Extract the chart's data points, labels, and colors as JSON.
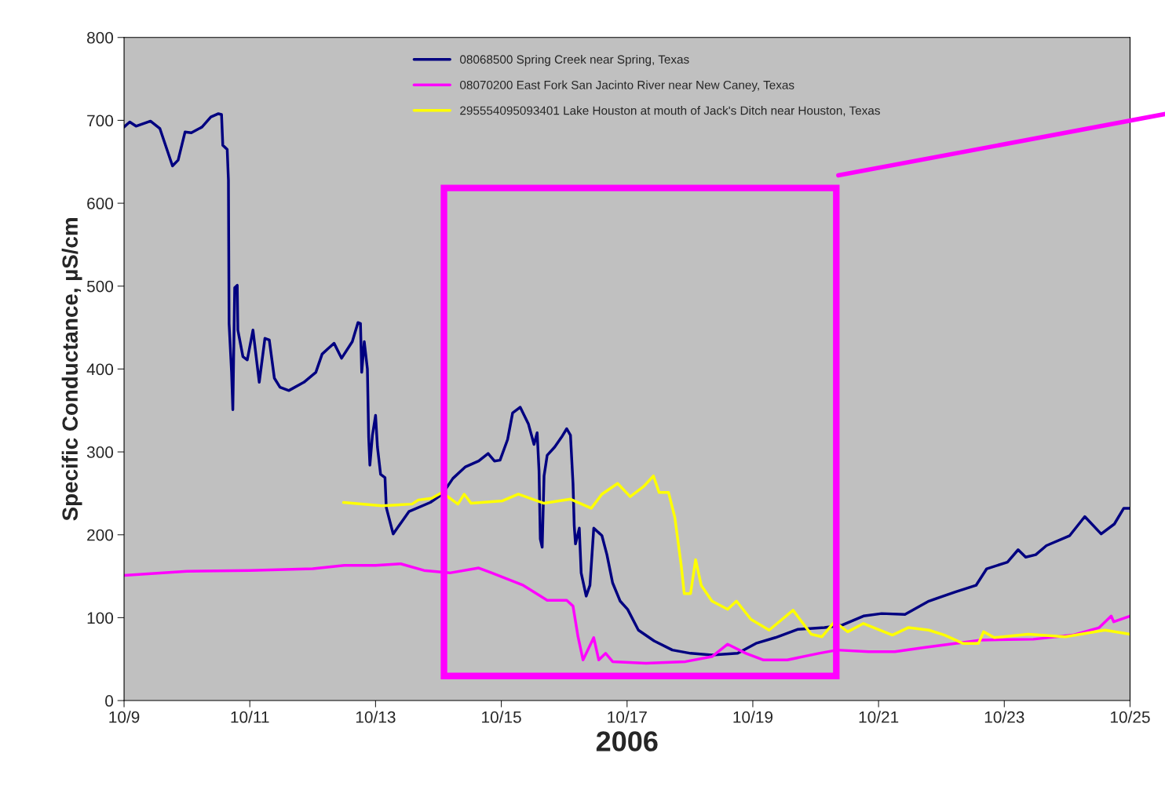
{
  "chart_data": {
    "type": "line",
    "xlabel": "2006",
    "ylabel": "Specific Conductance, µS/cm",
    "xlim": [
      "2006-10-09",
      "2006-10-25"
    ],
    "xticks": [
      {
        "value": "2006-10-09",
        "label": "10/9"
      },
      {
        "value": "2006-10-11",
        "label": "10/11"
      },
      {
        "value": "2006-10-13",
        "label": "10/13"
      },
      {
        "value": "2006-10-15",
        "label": "10/15"
      },
      {
        "value": "2006-10-17",
        "label": "10/17"
      },
      {
        "value": "2006-10-19",
        "label": "10/19"
      },
      {
        "value": "2006-10-21",
        "label": "10/21"
      },
      {
        "value": "2006-10-23",
        "label": "10/23"
      },
      {
        "value": "2006-10-25",
        "label": "10/25"
      }
    ],
    "ylim": [
      0,
      800
    ],
    "yticks": [
      0,
      100,
      200,
      300,
      400,
      500,
      600,
      700,
      800
    ],
    "grid": false,
    "legend": "top",
    "marker": "none",
    "line_style": "solid",
    "series": [
      {
        "name": "08068500 Spring Creek near Spring, Texas",
        "color": "#000080",
        "x": [
          "2006-10-09T00:00",
          "2006-10-09T02:10",
          "2006-10-09T04:34",
          "2006-10-09T10:05",
          "2006-10-09T13:41",
          "2006-10-09T18:29",
          "2006-10-09T20:38",
          "2006-10-09T23:17",
          "2006-10-10T01:41",
          "2006-10-10T05:46",
          "2006-10-10T09:07",
          "2006-10-10T12:00",
          "2006-10-10T13:12",
          "2006-10-10T13:41",
          "2006-10-10T15:22",
          "2006-10-10T15:50",
          "2006-10-10T16:05",
          "2006-10-10T17:02",
          "2006-10-10T17:31",
          "2006-10-10T18:14",
          "2006-10-10T19:12",
          "2006-10-10T19:26",
          "2006-10-10T21:22",
          "2006-10-10T23:02",
          "2006-10-11T01:12",
          "2006-10-11T03:36",
          "2006-10-11T05:46",
          "2006-10-11T07:26",
          "2006-10-11T09:22",
          "2006-10-11T11:31",
          "2006-10-11T14:53",
          "2006-10-11T20:38",
          "2006-10-12T01:12",
          "2006-10-12T03:36",
          "2006-10-12T06:00",
          "2006-10-12T08:10",
          "2006-10-12T11:02",
          "2006-10-12T15:07",
          "2006-10-12T17:17",
          "2006-10-12T18:14",
          "2006-10-12T18:43",
          "2006-10-12T19:41",
          "2006-10-12T20:53",
          "2006-10-12T21:22",
          "2006-10-12T21:50",
          "2006-10-12T22:48",
          "2006-10-13T00:00",
          "2006-10-13T00:43",
          "2006-10-13T01:55",
          "2006-10-13T03:36",
          "2006-10-13T04:05",
          "2006-10-13T06:43",
          "2006-10-13T12:43",
          "2006-10-13T20:53",
          "2006-10-14T01:26",
          "2006-10-14T05:31",
          "2006-10-14T10:19",
          "2006-10-14T15:22",
          "2006-10-14T18:58",
          "2006-10-14T21:22",
          "2006-10-14T23:31",
          "2006-10-15T02:24",
          "2006-10-15T04:19",
          "2006-10-15T07:12",
          "2006-10-15T10:19",
          "2006-10-15T12:29",
          "2006-10-15T13:41",
          "2006-10-15T14:24",
          "2006-10-15T14:53",
          "2006-10-15T15:36",
          "2006-10-15T16:19",
          "2006-10-15T17:31",
          "2006-10-15T20:24",
          "2006-10-15T23:02",
          "2006-10-16T00:58",
          "2006-10-16T02:24",
          "2006-10-16T03:22",
          "2006-10-16T03:50",
          "2006-10-16T04:19",
          "2006-10-16T05:46",
          "2006-10-16T06:29",
          "2006-10-16T08:24",
          "2006-10-16T09:50",
          "2006-10-16T11:17",
          "2006-10-16T14:24",
          "2006-10-16T16:19",
          "2006-10-16T18:29",
          "2006-10-16T21:22",
          "2006-10-17T00:14",
          "2006-10-17T04:19",
          "2006-10-17T10:19",
          "2006-10-17T17:17",
          "2006-10-18T00:14",
          "2006-10-18T08:24",
          "2006-10-18T18:14",
          "2006-10-19T01:12",
          "2006-10-19T08:38",
          "2006-10-19T17:17",
          "2006-10-20T03:22",
          "2006-10-20T10:05",
          "2006-10-20T18:14",
          "2006-10-21T01:12",
          "2006-10-21T10:05",
          "2006-10-21T19:12",
          "2006-10-22T05:17",
          "2006-10-22T13:12",
          "2006-10-22T17:17",
          "2006-10-23T01:12",
          "2006-10-23T05:17",
          "2006-10-23T08:10",
          "2006-10-23T12:00",
          "2006-10-23T16:05",
          "2006-10-24T00:58",
          "2006-10-24T06:43",
          "2006-10-24T12:58",
          "2006-10-24T18:00",
          "2006-10-24T21:36",
          "2006-10-25T00:00"
        ],
        "values": [
          692,
          698,
          693,
          699,
          690,
          645,
          652,
          686,
          685,
          692,
          704,
          708,
          707,
          670,
          665,
          628,
          455,
          396,
          351,
          498,
          501,
          447,
          415,
          411,
          447,
          384,
          437,
          435,
          389,
          378,
          374,
          384,
          396,
          418,
          425,
          431,
          413,
          433,
          456,
          455,
          396,
          433,
          400,
          318,
          284,
          320,
          344,
          306,
          273,
          269,
          233,
          201,
          228,
          239,
          249,
          268,
          282,
          289,
          298,
          289,
          290,
          315,
          347,
          354,
          334,
          309,
          323,
          277,
          195,
          185,
          271,
          296,
          306,
          318,
          328,
          320,
          262,
          211,
          189,
          208,
          154,
          126,
          139,
          208,
          199,
          176,
          142,
          120,
          110,
          85,
          72,
          61,
          57,
          55,
          57,
          69,
          76,
          86,
          88,
          91,
          102,
          105,
          104,
          120,
          131,
          139,
          159,
          167,
          182,
          173,
          176,
          187,
          199,
          222,
          201,
          213,
          232,
          232
        ]
      },
      {
        "name": "08070200 East Fork San Jacinto River near New Caney, Texas",
        "color": "#ff00ff",
        "x": [
          "2006-10-09T00:00",
          "2006-10-10T00:00",
          "2006-10-11T00:00",
          "2006-10-12T00:00",
          "2006-10-12T12:00",
          "2006-10-13T00:00",
          "2006-10-13T09:36",
          "2006-10-13T18:29",
          "2006-10-14T04:19",
          "2006-10-14T15:22",
          "2006-10-14T20:24",
          "2006-10-15T08:24",
          "2006-10-15T17:31",
          "2006-10-16T00:58",
          "2006-10-16T03:22",
          "2006-10-16T05:17",
          "2006-10-16T07:12",
          "2006-10-16T11:17",
          "2006-10-16T13:12",
          "2006-10-16T15:50",
          "2006-10-16T18:29",
          "2006-10-17T07:12",
          "2006-10-17T22:19",
          "2006-10-18T08:24",
          "2006-10-18T14:24",
          "2006-10-18T21:22",
          "2006-10-19T04:05",
          "2006-10-19T13:12",
          "2006-10-20T01:12",
          "2006-10-20T08:10",
          "2006-10-20T20:10",
          "2006-10-21T06:14",
          "2006-10-21T17:17",
          "2006-10-22T05:17",
          "2006-10-22T15:07",
          "2006-10-23T11:02",
          "2006-10-24T02:10",
          "2006-10-24T12:14",
          "2006-10-24T16:48",
          "2006-10-24T17:46",
          "2006-10-25T00:00"
        ],
        "values": [
          151,
          156,
          157,
          159,
          163,
          163,
          165,
          157,
          154,
          160,
          154,
          139,
          121,
          121,
          114,
          77,
          49,
          76,
          49,
          57,
          47,
          45,
          47,
          53,
          68,
          57,
          49,
          49,
          57,
          61,
          59,
          59,
          64,
          69,
          73,
          74,
          79,
          88,
          102,
          95,
          102
        ]
      },
      {
        "name": "295554095093401 Lake Houston at mouth of Jack's Ditch near Houston, Texas",
        "color": "#ffff00",
        "x": [
          "2006-10-12T11:46",
          "2006-10-13T02:24",
          "2006-10-13T13:55",
          "2006-10-13T16:19",
          "2006-10-13T21:22",
          "2006-10-14T01:26",
          "2006-10-14T07:26",
          "2006-10-14T09:50",
          "2006-10-14T12:29",
          "2006-10-15T00:29",
          "2006-10-15T06:29",
          "2006-10-15T16:19",
          "2006-10-16T02:24",
          "2006-10-16T10:19",
          "2006-10-16T14:24",
          "2006-10-16T20:24",
          "2006-10-17T01:12",
          "2006-10-17T06:14",
          "2006-10-17T10:05",
          "2006-10-17T12:14",
          "2006-10-17T15:50",
          "2006-10-17T18:14",
          "2006-10-17T20:38",
          "2006-10-17T21:50",
          "2006-10-18T00:14",
          "2006-10-18T02:10",
          "2006-10-18T04:19",
          "2006-10-18T08:24",
          "2006-10-18T14:24",
          "2006-10-18T17:46",
          "2006-10-18T23:17",
          "2006-10-19T06:14",
          "2006-10-19T15:22",
          "2006-10-19T22:19",
          "2006-10-20T02:24",
          "2006-10-20T07:12",
          "2006-10-20T12:14",
          "2006-10-20T18:14",
          "2006-10-21T05:17",
          "2006-10-21T11:17",
          "2006-10-21T19:12",
          "2006-10-22T01:12",
          "2006-10-22T08:10",
          "2006-10-22T14:10",
          "2006-10-22T16:05",
          "2006-10-22T20:10",
          "2006-10-23T09:07",
          "2006-10-23T23:17",
          "2006-10-24T14:24",
          "2006-10-25T00:00"
        ],
        "values": [
          239,
          235,
          237,
          242,
          244,
          251,
          237,
          249,
          238,
          241,
          249,
          238,
          243,
          232,
          249,
          262,
          246,
          258,
          271,
          251,
          251,
          221,
          164,
          129,
          129,
          170,
          139,
          120,
          110,
          120,
          98,
          85,
          109,
          80,
          77,
          95,
          83,
          93,
          79,
          88,
          85,
          79,
          69,
          69,
          83,
          76,
          80,
          77,
          85,
          80
        ]
      }
    ]
  }
}
